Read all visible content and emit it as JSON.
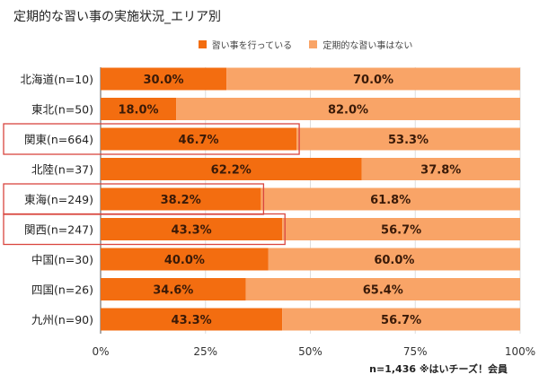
{
  "chart_data": {
    "type": "bar",
    "orientation": "horizontal",
    "stacked": true,
    "title": "定期的な習い事の実施状況_エリア別",
    "categories": [
      "北海道(n=10)",
      "東北(n=50)",
      "関東(n=664)",
      "北陸(n=37)",
      "東海(n=249)",
      "関西(n=247)",
      "中国(n=30)",
      "四国(n=26)",
      "九州(n=90)"
    ],
    "series": [
      {
        "name": "習い事を行っている",
        "color": "#f36d10",
        "values": [
          30.0,
          18.0,
          46.7,
          62.2,
          38.2,
          43.3,
          40.0,
          34.6,
          43.3
        ]
      },
      {
        "name": "定期的な習い事はない",
        "color": "#f9a467",
        "values": [
          70.0,
          82.0,
          53.3,
          37.8,
          61.8,
          56.7,
          60.0,
          65.4,
          56.7
        ]
      }
    ],
    "xlim": [
      0,
      100
    ],
    "xticks": [
      "0%",
      "25%",
      "50%",
      "75%",
      "100%"
    ],
    "grid": true,
    "legend_position": "top",
    "highlighted_categories": [
      "関東(n=664)",
      "東海(n=249)",
      "関西(n=247)"
    ],
    "highlight_color": "#d9463f",
    "footnote": "n=1,436 ※はいチーズ！会員"
  }
}
